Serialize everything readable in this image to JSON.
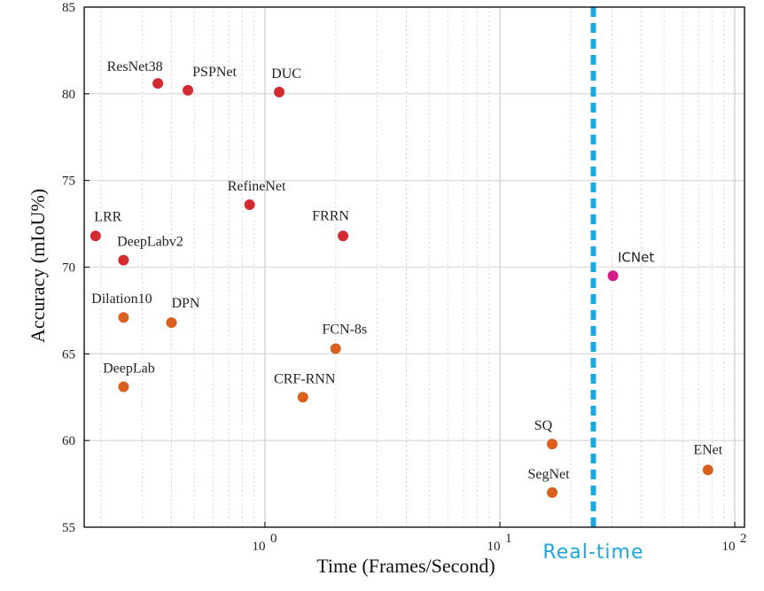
{
  "chart_data": {
    "type": "scatter",
    "xlabel": "Time (Frames/Second)",
    "ylabel": "Accuracy (mIoU%)",
    "x_scale": "log",
    "xlim": [
      0.17,
      110
    ],
    "ylim": [
      55,
      85
    ],
    "grid": true,
    "y_ticks": [
      55,
      60,
      65,
      70,
      75,
      80,
      85
    ],
    "x_ticks": [
      {
        "value": 1,
        "base": "10",
        "exp": "0"
      },
      {
        "value": 10,
        "base": "10",
        "exp": "1"
      },
      {
        "value": 100,
        "base": "10",
        "exp": "2"
      }
    ],
    "threshold": {
      "x": 25,
      "label": "Real-time",
      "color": "#1ba7e0"
    },
    "colors": {
      "high": "#d42a31",
      "mid": "#d9601e",
      "icnet": "#d11c8a"
    },
    "points": [
      {
        "label": "ResNet38",
        "x": 0.35,
        "y": 80.6,
        "group": "high"
      },
      {
        "label": "PSPNet",
        "x": 0.47,
        "y": 80.2,
        "group": "high"
      },
      {
        "label": "DUC",
        "x": 1.15,
        "y": 80.1,
        "group": "high"
      },
      {
        "label": "RefineNet",
        "x": 0.86,
        "y": 73.6,
        "group": "high"
      },
      {
        "label": "FRRN",
        "x": 2.15,
        "y": 71.8,
        "group": "high"
      },
      {
        "label": "LRR",
        "x": 0.19,
        "y": 71.8,
        "group": "high"
      },
      {
        "label": "DeepLabv2",
        "x": 0.25,
        "y": 70.4,
        "group": "high"
      },
      {
        "label": "Dilation10",
        "x": 0.25,
        "y": 67.1,
        "group": "mid"
      },
      {
        "label": "DPN",
        "x": 0.4,
        "y": 66.8,
        "group": "mid"
      },
      {
        "label": "FCN-8s",
        "x": 2.0,
        "y": 65.3,
        "group": "mid"
      },
      {
        "label": "DeepLab",
        "x": 0.25,
        "y": 63.1,
        "group": "mid"
      },
      {
        "label": "CRF-RNN",
        "x": 1.45,
        "y": 62.5,
        "group": "mid"
      },
      {
        "label": "SQ",
        "x": 16.7,
        "y": 59.8,
        "group": "mid"
      },
      {
        "label": "SegNet",
        "x": 16.7,
        "y": 57.0,
        "group": "mid"
      },
      {
        "label": "ENet",
        "x": 76.9,
        "y": 58.3,
        "group": "mid"
      },
      {
        "label": "ICNet",
        "x": 30.3,
        "y": 69.5,
        "group": "icnet"
      }
    ]
  }
}
